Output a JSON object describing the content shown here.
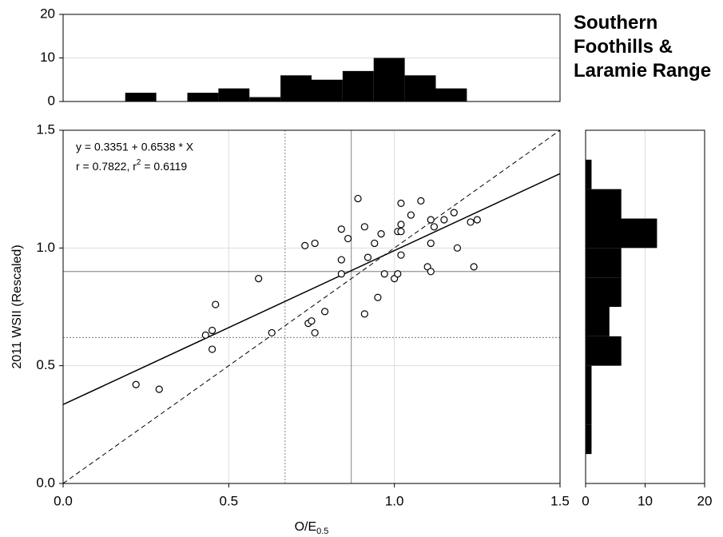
{
  "title": "Southern Foothills & Laramie Range",
  "chart_data": [
    {
      "type": "histogram",
      "orientation": "vertical",
      "color": "#000000",
      "bins": [
        0,
        0.09375,
        0.1875,
        0.28125,
        0.375,
        0.46875,
        0.5625,
        0.65625,
        0.75,
        0.84375,
        0.9375,
        1.03125,
        1.125,
        1.21875,
        1.3125,
        1.40625,
        1.5
      ],
      "counts": [
        0,
        0,
        2,
        0,
        2,
        3,
        1,
        6,
        5,
        7,
        10,
        6,
        3,
        0,
        0,
        0
      ],
      "xlim": [
        0,
        1.5
      ],
      "ylim": [
        0,
        20
      ],
      "yticks": [
        0,
        10,
        20
      ],
      "grid": true
    },
    {
      "type": "scatter",
      "color": "#000000",
      "x_label": [
        "O/E",
        "0.5"
      ],
      "y_label": "2011 WSII (Rescaled)",
      "annotations": [
        "y = 0.3351 + 0.6538 * X",
        [
          "r = 0.7822, r",
          "2",
          " = 0.6119"
        ]
      ],
      "fit": {
        "intercept": 0.3351,
        "slope": 0.6538
      },
      "identity_line": "dashed",
      "vlines": [
        {
          "value": 0.87,
          "style": "solid"
        },
        {
          "value": 0.67,
          "style": "dotted"
        }
      ],
      "hlines": [
        {
          "value": 0.9,
          "style": "solid"
        },
        {
          "value": 0.62,
          "style": "dotted"
        }
      ],
      "x": [
        0.22,
        0.29,
        0.43,
        0.45,
        0.46,
        0.45,
        0.59,
        0.63,
        0.73,
        0.76,
        0.74,
        0.75,
        0.76,
        0.79,
        0.84,
        0.84,
        0.84,
        0.86,
        0.89,
        0.91,
        0.92,
        0.94,
        0.96,
        0.91,
        0.95,
        0.97,
        1.0,
        1.01,
        1.02,
        1.02,
        1.01,
        1.02,
        1.02,
        1.05,
        1.08,
        1.11,
        1.12,
        1.1,
        1.11,
        1.11,
        1.15,
        1.18,
        1.19,
        1.23,
        1.25,
        1.24
      ],
      "y": [
        0.42,
        0.4,
        0.63,
        0.65,
        0.76,
        0.57,
        0.87,
        0.64,
        1.01,
        1.02,
        0.68,
        0.69,
        0.64,
        0.73,
        1.08,
        0.95,
        0.89,
        1.04,
        1.21,
        1.09,
        0.96,
        1.02,
        1.06,
        0.72,
        0.79,
        0.89,
        0.87,
        0.89,
        1.19,
        1.1,
        1.07,
        1.07,
        0.97,
        1.14,
        1.2,
        1.12,
        1.09,
        0.92,
        0.9,
        1.02,
        1.12,
        1.15,
        1.0,
        1.11,
        1.12,
        0.92
      ],
      "xlim": [
        0,
        1.5
      ],
      "ylim": [
        0,
        1.5
      ],
      "xticks": [
        {
          "value": 0,
          "label": "0.0"
        },
        {
          "value": 0.5,
          "label": "0.5"
        },
        {
          "value": 1,
          "label": "1.0"
        },
        {
          "value": 1.5,
          "label": "1.5"
        }
      ],
      "yticks": [
        {
          "value": 0,
          "label": "0.0"
        },
        {
          "value": 0.5,
          "label": "0.5"
        },
        {
          "value": 1,
          "label": "1.0"
        },
        {
          "value": 1.5,
          "label": "1.5"
        }
      ],
      "grid": true
    },
    {
      "type": "histogram",
      "orientation": "horizontal",
      "color": "#000000",
      "bins": [
        0,
        0.125,
        0.25,
        0.375,
        0.5,
        0.625,
        0.75,
        0.875,
        1.0,
        1.125,
        1.25,
        1.375,
        1.5
      ],
      "counts": [
        0,
        1,
        1,
        1,
        6,
        4,
        6,
        6,
        12,
        6,
        1,
        0
      ],
      "ylim": [
        0,
        1.5
      ],
      "xlim": [
        0,
        20
      ],
      "xticks": [
        0,
        10,
        20
      ],
      "grid": true
    }
  ]
}
